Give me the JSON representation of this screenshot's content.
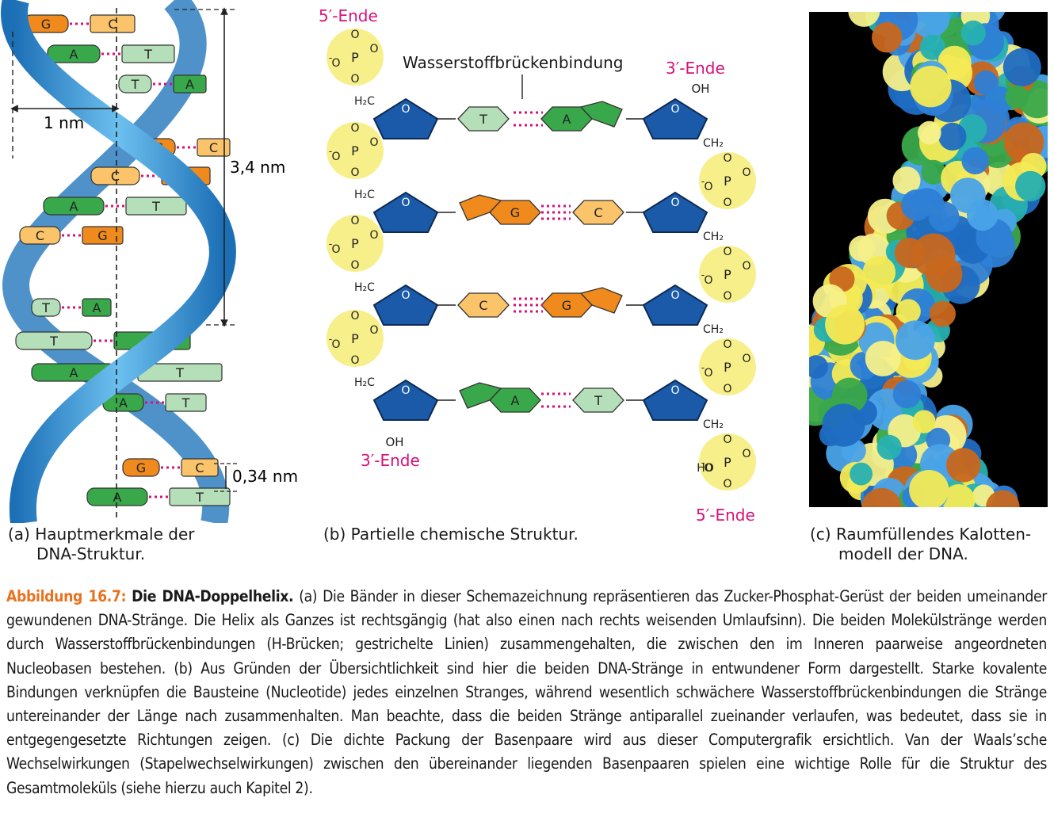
{
  "panel_a": {
    "measure_1nm": "1 nm",
    "measure_pitch": "3,4 nm",
    "measure_rise": "0,34 nm",
    "pairs": [
      {
        "left": "G",
        "right": "C"
      },
      {
        "left": "A",
        "right": "T"
      },
      {
        "left": "T",
        "right": "A"
      },
      {
        "left": "G",
        "right": "C"
      },
      {
        "left": "C",
        "right": "G"
      },
      {
        "left": "A",
        "right": "T"
      },
      {
        "left": "C",
        "right": "G"
      },
      {
        "left": "T",
        "right": "A"
      },
      {
        "left": "T",
        "right": "A"
      },
      {
        "left": "A",
        "right": "T"
      },
      {
        "left": "A",
        "right": "T"
      },
      {
        "left": "G",
        "right": "C"
      },
      {
        "left": "A",
        "right": "T"
      }
    ],
    "caption_line1": "(a) Hauptmerkmale der",
    "caption_line2": "DNA-Struktur."
  },
  "panel_b": {
    "five_prime_top": "5′-Ende",
    "three_prime_top": "3′-Ende",
    "three_prime_bottom": "3′-Ende",
    "five_prime_bottom": "5′-Ende",
    "hbond_label": "Wasserstoffbrückenbindung",
    "phosphate_P": "P",
    "phosphate_O": "O",
    "oh_label": "OH",
    "ho_label": "HO",
    "ch2_left": "H₂C",
    "ch2_right": "CH₂",
    "ring_O": "O",
    "minus": "-",
    "rows": [
      {
        "left_base": "T",
        "right_base": "A"
      },
      {
        "left_base": "G",
        "right_base": "C"
      },
      {
        "left_base": "C",
        "right_base": "G"
      },
      {
        "left_base": "A",
        "right_base": "T"
      }
    ],
    "caption": "(b) Partielle chemische Struktur."
  },
  "panel_c": {
    "caption_line1": "(c) Raumfüllendes Kalotten-",
    "caption_line2": "modell der DNA."
  },
  "figure_caption": {
    "label": "Abbildung 16.7:",
    "title": "Die DNA-Doppelhelix.",
    "body": "(a) Die Bänder in dieser Schemazeichnung repräsentieren das Zucker-Phosphat-Gerüst der beiden umeinander gewundenen DNA-Stränge. Die Helix als Ganzes ist rechtsgängig (hat also einen nach rechts weisenden Umlaufsinn). Die beiden Molekülstränge werden durch Wasserstoffbrückenbindungen (H-Brücken; gestrichelte Linien) zusammengehalten, die zwischen den im Inneren paarweise angeordneten Nucleobasen bestehen. (b) Aus Gründen der Übersichtlichkeit sind hier die beiden DNA-Stränge in entwundener Form dargestellt. Starke kovalente Bindungen verknüpfen die Bausteine (Nucleotide) jedes einzelnen Stranges, während wesentlich schwächere Wasserstoffbrückenbindungen die Stränge untereinander der Länge nach zusammenhalten. Man beachte, dass die beiden Stränge antiparallel zueinander verlaufen, was bedeutet, dass sie in entgegengesetzte Richtungen zeigen. (c) Die dichte Packung der Basenpaare wird aus dieser Computergrafik ersichtlich. Van der Waals’sche Wechselwirkungen (Stapelwechselwirkungen) zwischen den übereinander liegenden Basenpaaren spielen eine wichtige Rolle für die Struktur des Gesamtmoleküls (siehe hierzu auch Kapitel 2)."
  },
  "colors": {
    "accent": "#e8731f",
    "magenta": "#d6127a",
    "ribbon_blue": "#2f8fd0",
    "guanine": "#f08a1c",
    "cytosine": "#fbc36a",
    "adenine": "#38a84a",
    "thymine": "#b5dfb8",
    "sugar": "#1a5aa8",
    "phosphate": "#f7ef8a"
  }
}
